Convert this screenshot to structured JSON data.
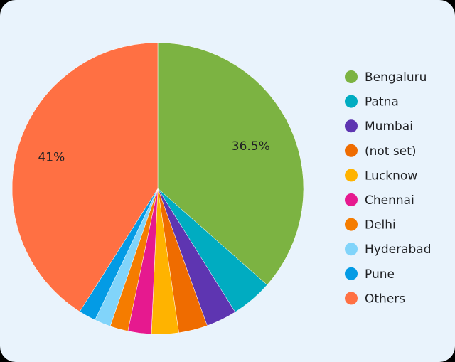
{
  "chart_data": {
    "type": "pie",
    "categories": [
      "Bengaluru",
      "Patna",
      "Mumbai",
      "(not set)",
      "Lucknow",
      "Chennai",
      "Delhi",
      "Hyderabad",
      "Pune",
      "Others"
    ],
    "values": [
      36.5,
      4.6,
      3.4,
      3.2,
      3,
      2.6,
      2,
      1.8,
      1.9,
      41
    ],
    "value_labels": [
      "36.5%",
      null,
      null,
      null,
      null,
      null,
      null,
      null,
      null,
      "41%"
    ],
    "colors": [
      "#7cb342",
      "#00acc1",
      "#5e35b1",
      "#ef6c00",
      "#ffb300",
      "#e6198f",
      "#f57c00",
      "#81d4fa",
      "#039be5",
      "#ff7043"
    ],
    "legend": "right"
  }
}
